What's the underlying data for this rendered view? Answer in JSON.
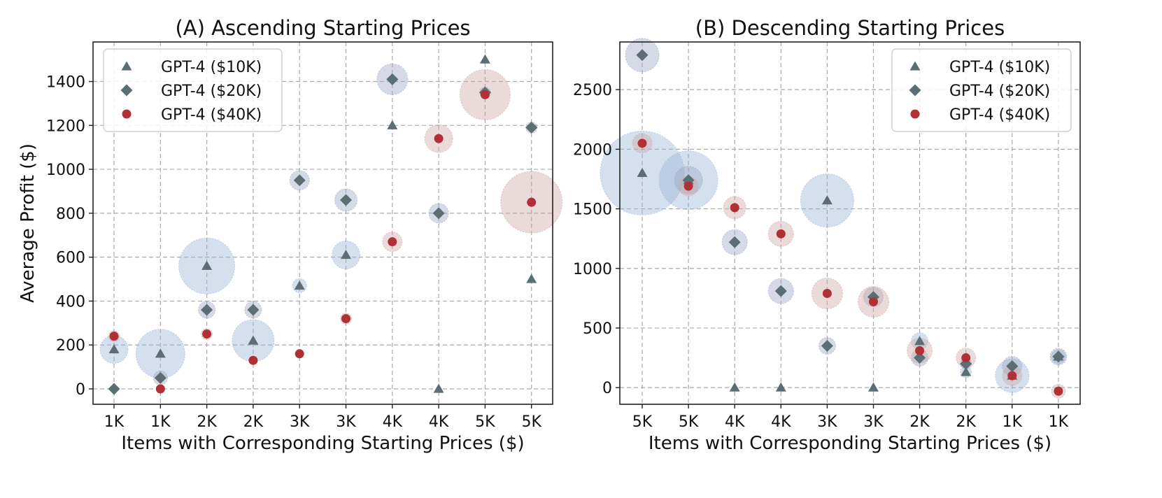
{
  "chart_data": [
    {
      "type": "scatter",
      "title": "(A) Ascending Starting Prices",
      "xlabel": "Items with Corresponding Starting Prices ($)",
      "ylabel": "Average Profit ($)",
      "categories": [
        "1K",
        "1K",
        "2K",
        "2K",
        "3K",
        "3K",
        "4K",
        "4K",
        "5K",
        "5K"
      ],
      "ylim": [
        -70,
        1580
      ],
      "yticks": [
        0,
        200,
        400,
        600,
        800,
        1000,
        1200,
        1400
      ],
      "grid": true,
      "legend": "top-left",
      "series": [
        {
          "name": "GPT-4 ($10K)",
          "marker": "triangle",
          "color": "#5a6e73",
          "halo_color": "#9ab6d6",
          "values": [
            180,
            160,
            560,
            220,
            470,
            610,
            1200,
            0,
            1500,
            500
          ],
          "spread": [
            20,
            35,
            40,
            30,
            10,
            20,
            0,
            0,
            0,
            0
          ]
        },
        {
          "name": "GPT-4 ($20K)",
          "marker": "diamond",
          "color": "#5a6e73",
          "halo_color": "#9aa6c4",
          "values": [
            0,
            50,
            360,
            360,
            950,
            860,
            1410,
            800,
            1350,
            1190
          ],
          "spread": [
            0,
            10,
            12,
            12,
            14,
            16,
            22,
            14,
            8,
            8
          ]
        },
        {
          "name": "GPT-4 ($40K)",
          "marker": "circle",
          "color": "#b03035",
          "halo_color": "#cfa8a8",
          "values": [
            240,
            0,
            250,
            130,
            160,
            320,
            670,
            1140,
            1340,
            850
          ],
          "spread": [
            8,
            0,
            8,
            0,
            0,
            6,
            14,
            20,
            36,
            44
          ]
        }
      ]
    },
    {
      "type": "scatter",
      "title": "(B) Descending Starting Prices",
      "xlabel": "Items with Corresponding Starting Prices ($)",
      "ylabel": "",
      "categories": [
        "5K",
        "5K",
        "4K",
        "4K",
        "3K",
        "3K",
        "2K",
        "2K",
        "1K",
        "1K"
      ],
      "ylim": [
        -140,
        2900
      ],
      "yticks": [
        0,
        500,
        1000,
        1500,
        2000,
        2500
      ],
      "grid": true,
      "legend": "top-right",
      "series": [
        {
          "name": "GPT-4 ($10K)",
          "marker": "triangle",
          "color": "#5a6e73",
          "halo_color": "#9ab6d6",
          "values": [
            1800,
            1740,
            0,
            0,
            1570,
            0,
            390,
            130,
            100,
            260
          ],
          "spread": [
            60,
            42,
            0,
            0,
            38,
            0,
            12,
            6,
            24,
            10
          ]
        },
        {
          "name": "GPT-4 ($20K)",
          "marker": "diamond",
          "color": "#5a6e73",
          "halo_color": "#9aa6c4",
          "values": [
            2790,
            1740,
            1220,
            810,
            350,
            760,
            250,
            200,
            180,
            260
          ],
          "spread": [
            24,
            20,
            18,
            18,
            12,
            14,
            12,
            8,
            14,
            12
          ]
        },
        {
          "name": "GPT-4 ($40K)",
          "marker": "circle",
          "color": "#b03035",
          "halo_color": "#cfa8a8",
          "values": [
            2050,
            1690,
            1510,
            1290,
            790,
            720,
            310,
            250,
            100,
            -30
          ],
          "spread": [
            14,
            14,
            16,
            18,
            22,
            22,
            18,
            14,
            14,
            10
          ]
        }
      ]
    }
  ]
}
